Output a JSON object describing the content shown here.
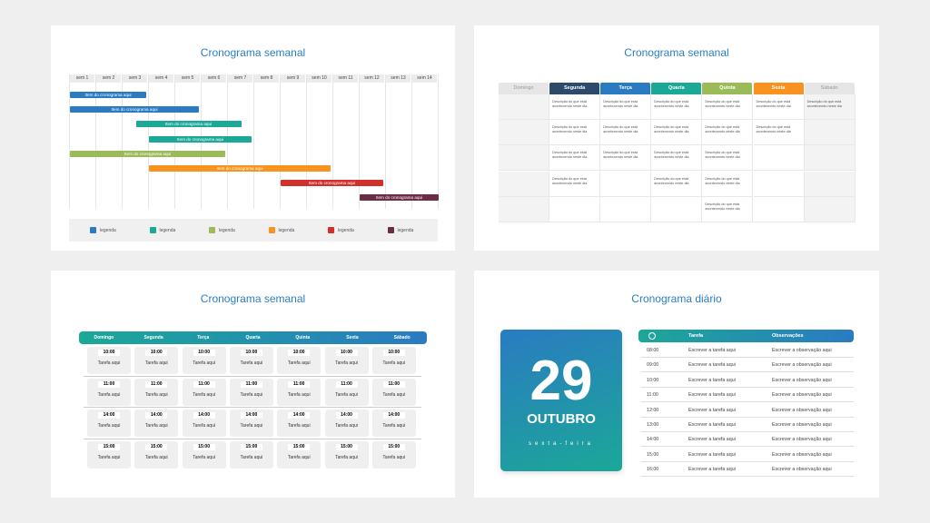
{
  "slides": [
    {
      "title": "Cronograma semanal",
      "weeks": [
        "sem 1",
        "sem 2",
        "sem 3",
        "sem 4",
        "sem 5",
        "sem 6",
        "sem 7",
        "sem 8",
        "sem 9",
        "sem 10",
        "sem 11",
        "sem 12",
        "sem 13",
        "sem 14"
      ],
      "bars": [
        {
          "label": "Item do cronograma aqui",
          "start_week": 1,
          "end_week": 3.9,
          "color": "#2a7bc2"
        },
        {
          "label": "Item do cronograma aqui",
          "start_week": 1,
          "end_week": 5.9,
          "color": "#2a7bc2"
        },
        {
          "label": "Item do cronograma aqui",
          "start_week": 3.5,
          "end_week": 7.5,
          "color": "#1ba897"
        },
        {
          "label": "Item do cronograma aqui",
          "start_week": 4,
          "end_week": 7.9,
          "color": "#1ba897"
        },
        {
          "label": "Item do cronograma aqui",
          "start_week": 1,
          "end_week": 6.9,
          "color": "#9bbb59"
        },
        {
          "label": "Item do cronograma aqui",
          "start_week": 4,
          "end_week": 10.9,
          "color": "#f7931e"
        },
        {
          "label": "Item do cronograma aqui",
          "start_week": 9,
          "end_week": 12.9,
          "color": "#d0312d"
        },
        {
          "label": "Item do cronograma aqui",
          "start_week": 12,
          "end_week": 15,
          "color": "#6b2c47"
        }
      ],
      "legend": [
        {
          "label": "legenda",
          "color": "#2a7bc2"
        },
        {
          "label": "legenda",
          "color": "#1ba897"
        },
        {
          "label": "legenda",
          "color": "#9bbb59"
        },
        {
          "label": "legenda",
          "color": "#f7931e"
        },
        {
          "label": "legenda",
          "color": "#d0312d"
        },
        {
          "label": "legenda",
          "color": "#6b2c47"
        }
      ]
    },
    {
      "title": "Cronograma semanal",
      "days": [
        {
          "name": "Domingo",
          "color": "#e6e6e6",
          "entries": 0
        },
        {
          "name": "Segunda",
          "color": "#2d4a6b",
          "entries": 4
        },
        {
          "name": "Terça",
          "color": "#2a7bc2",
          "entries": 3
        },
        {
          "name": "Quarta",
          "color": "#1ba897",
          "entries": 4
        },
        {
          "name": "Quinta",
          "color": "#9bbb59",
          "entries": 5
        },
        {
          "name": "Sexta",
          "color": "#f7931e",
          "entries": 2
        },
        {
          "name": "Sábado",
          "color": "#e6e6e6",
          "entries": 1
        }
      ],
      "description": "Descrição do que está acontecendo neste dia"
    },
    {
      "title": "Cronograma semanal",
      "days": [
        "Domingo",
        "Segunda",
        "Terça",
        "Quarta",
        "Quinta",
        "Sexta",
        "Sábado"
      ],
      "times": [
        "10:00",
        "11:00",
        "14:00",
        "15:00"
      ],
      "task": "Tarefa aqui"
    },
    {
      "title": "Cronograma diário",
      "day": "29",
      "month": "OUTUBRO",
      "weekday": "sexta-feira",
      "col_task": "Tarefa",
      "col_obs": "Observações",
      "rows": [
        {
          "time": "08:00",
          "task": "Escrever a tarefa aqui",
          "obs": "Escrever a observação aqui"
        },
        {
          "time": "09:00",
          "task": "Escrever a tarefa aqui",
          "obs": "Escrever a observação aqui"
        },
        {
          "time": "10:00",
          "task": "Escrever a tarefa aqui",
          "obs": "Escrever a observação aqui"
        },
        {
          "time": "11:00",
          "task": "Escrever a tarefa aqui",
          "obs": "Escrever a observação aqui"
        },
        {
          "time": "12:00",
          "task": "Escrever a tarefa aqui",
          "obs": "Escrever a observação aqui"
        },
        {
          "time": "13:00",
          "task": "Escrever a tarefa aqui",
          "obs": "Escrever a observação aqui"
        },
        {
          "time": "14:00",
          "task": "Escrever a tarefa aqui",
          "obs": "Escrever a observação aqui"
        },
        {
          "time": "15:00",
          "task": "Escrever a tarefa aqui",
          "obs": "Escrever a observação aqui"
        },
        {
          "time": "16:00",
          "task": "Escrever a tarefa aqui",
          "obs": "Escrever a observação aqui"
        }
      ]
    }
  ]
}
